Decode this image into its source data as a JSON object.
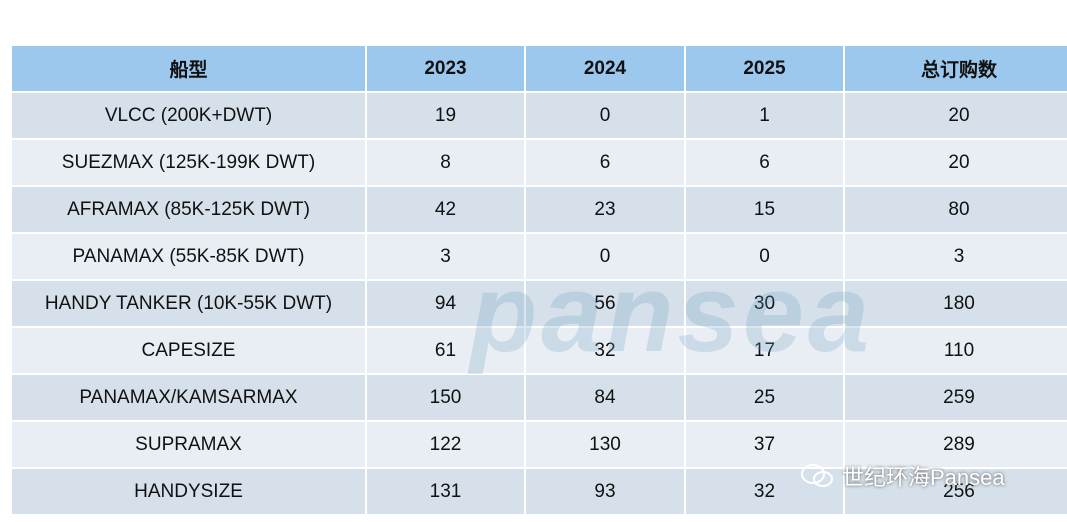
{
  "table": {
    "header": [
      "船型",
      "2023",
      "2024",
      "2025",
      "总订购数"
    ],
    "rows": [
      [
        "VLCC (200K+DWT)",
        19,
        0,
        1,
        20
      ],
      [
        "SUEZMAX (125K-199K DWT)",
        8,
        6,
        6,
        20
      ],
      [
        "AFRAMAX (85K-125K DWT)",
        42,
        23,
        15,
        80
      ],
      [
        "PANAMAX (55K-85K DWT)",
        3,
        0,
        0,
        3
      ],
      [
        "HANDY TANKER (10K-55K DWT)",
        94,
        56,
        30,
        180
      ],
      [
        "CAPESIZE",
        61,
        32,
        17,
        110
      ],
      [
        "PANAMAX/KAMSARMAX",
        150,
        84,
        25,
        259
      ],
      [
        "SUPRAMAX",
        122,
        130,
        37,
        289
      ],
      [
        "HANDYSIZE",
        131,
        93,
        32,
        256
      ]
    ]
  },
  "watermark": {
    "logo_text": "pansea",
    "caption": "世纪环海Pansea"
  }
}
